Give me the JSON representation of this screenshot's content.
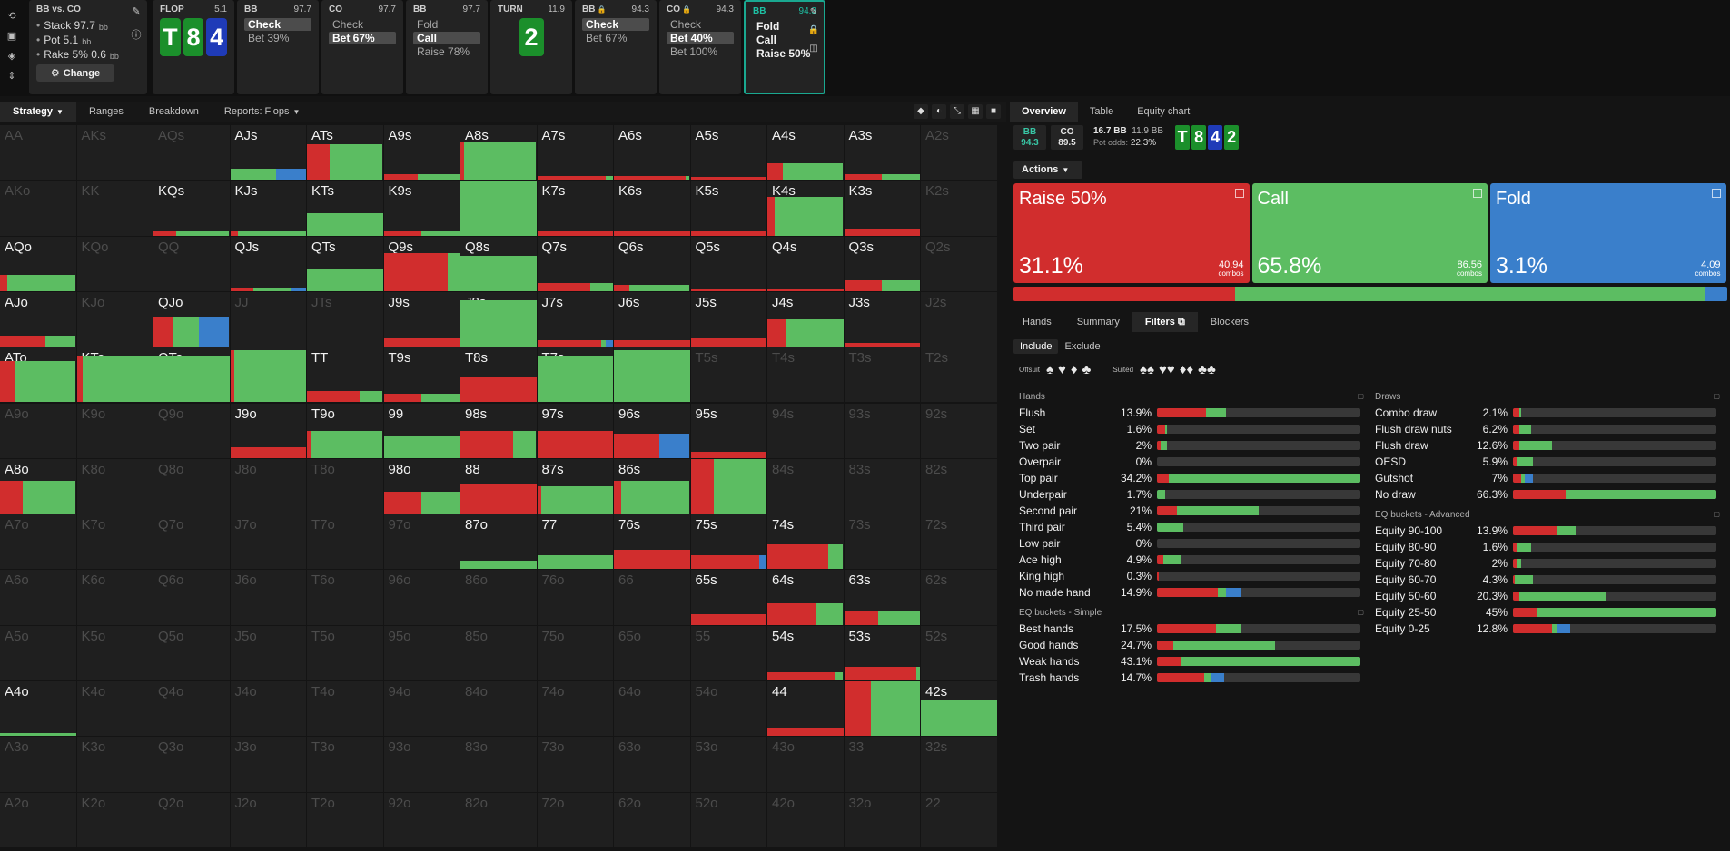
{
  "colors": {
    "raise": "#d12d2d",
    "call": "#5cbd62",
    "fold": "#3a7fcb",
    "spade_card": "#1b8f2b",
    "heart_card": "#1f3bb8"
  },
  "topbar": {
    "left_icons": [
      "refresh-icon",
      "save-icon",
      "gamepad-icon",
      "expand-icon"
    ],
    "summary": {
      "title": "BB vs. CO",
      "stack_label": "Stack 97.7",
      "stack_unit": "bb",
      "pot_label": "Pot 5.1",
      "pot_unit": "bb",
      "rake_label": "Rake 5% 0.6",
      "rake_unit": "bb",
      "change_label": "Change"
    },
    "action_cards": [
      {
        "kind": "board",
        "title": "FLOP",
        "pot": "5.1",
        "cards": [
          "T",
          "8",
          "4"
        ]
      },
      {
        "kind": "actions",
        "title": "BB",
        "pot": "97.7",
        "items": [
          "Check",
          "Bet 39%"
        ],
        "selected": 0
      },
      {
        "kind": "actions",
        "title": "CO",
        "pot": "97.7",
        "items": [
          "Check",
          "Bet 67%"
        ],
        "selected": 1
      },
      {
        "kind": "actions",
        "title": "BB",
        "pot": "97.7",
        "items": [
          "Fold",
          "Call",
          "Raise 78%"
        ],
        "selected": 1
      },
      {
        "kind": "board",
        "title": "TURN",
        "pot": "11.9",
        "cards": [
          "2"
        ]
      },
      {
        "kind": "actions",
        "title": "BB",
        "pot": "94.3",
        "locked": true,
        "items": [
          "Check",
          "Bet 67%"
        ],
        "selected": 0
      },
      {
        "kind": "actions",
        "title": "CO",
        "pot": "94.3",
        "locked": true,
        "items": [
          "Check",
          "Bet 40%",
          "Bet 100%"
        ],
        "selected": 1
      },
      {
        "kind": "actions",
        "title": "BB",
        "pot": "94.3",
        "items": [
          "Fold",
          "Call",
          "Raise 50%"
        ],
        "selected": -1,
        "active": true
      }
    ]
  },
  "grid_tabs": {
    "items": [
      "Strategy",
      "Ranges",
      "Breakdown",
      "Reports: Flops"
    ],
    "selected": 0
  },
  "grid": {
    "rows": [
      [
        "AA",
        "AKs",
        "AQs",
        "AJs",
        "ATs",
        "A9s",
        "A8s",
        "A7s",
        "A6s",
        "A5s",
        "A4s",
        "A3s",
        "A2s"
      ],
      [
        "AKo",
        "KK",
        "KQs",
        "KJs",
        "KTs",
        "K9s",
        "K8s",
        "K7s",
        "K6s",
        "K5s",
        "K4s",
        "K3s",
        "K2s"
      ],
      [
        "AQo",
        "KQo",
        "QQ",
        "QJs",
        "QTs",
        "Q9s",
        "Q8s",
        "Q7s",
        "Q6s",
        "Q5s",
        "Q4s",
        "Q3s",
        "Q2s"
      ],
      [
        "AJo",
        "KJo",
        "QJo",
        "JJ",
        "JTs",
        "J9s",
        "J8s",
        "J7s",
        "J6s",
        "J5s",
        "J4s",
        "J3s",
        "J2s"
      ],
      [
        "ATo",
        "KTo",
        "QTo",
        "JTo",
        "TT",
        "T9s",
        "T8s",
        "T7s",
        "T6s",
        "T5s",
        "T4s",
        "T3s",
        "T2s"
      ],
      [
        "A9o",
        "K9o",
        "Q9o",
        "J9o",
        "T9o",
        "99",
        "98s",
        "97s",
        "96s",
        "95s",
        "94s",
        "93s",
        "92s"
      ],
      [
        "A8o",
        "K8o",
        "Q8o",
        "J8o",
        "T8o",
        "98o",
        "88",
        "87s",
        "86s",
        "85s",
        "84s",
        "83s",
        "82s"
      ],
      [
        "A7o",
        "K7o",
        "Q7o",
        "J7o",
        "T7o",
        "97o",
        "87o",
        "77",
        "76s",
        "75s",
        "74s",
        "73s",
        "72s"
      ],
      [
        "A6o",
        "K6o",
        "Q6o",
        "J6o",
        "T6o",
        "96o",
        "86o",
        "76o",
        "66",
        "65s",
        "64s",
        "63s",
        "62s"
      ],
      [
        "A5o",
        "K5o",
        "Q5o",
        "J5o",
        "T5o",
        "95o",
        "85o",
        "75o",
        "65o",
        "55",
        "54s",
        "53s",
        "52s"
      ],
      [
        "A4o",
        "K4o",
        "Q4o",
        "J4o",
        "T4o",
        "94o",
        "84o",
        "74o",
        "64o",
        "54o",
        "44",
        "43s",
        "42s"
      ],
      [
        "A3o",
        "K3o",
        "Q3o",
        "J3o",
        "T3o",
        "93o",
        "83o",
        "73o",
        "63o",
        "53o",
        "43o",
        "33",
        "32s"
      ],
      [
        "A2o",
        "K2o",
        "Q2o",
        "J2o",
        "T2o",
        "92o",
        "82o",
        "72o",
        "62o",
        "52o",
        "42o",
        "32o",
        "22"
      ]
    ],
    "cells": {
      "AJs": {
        "h": 0.2,
        "r": 0,
        "c": 0.6,
        "f": 0.4
      },
      "ATs": {
        "h": 0.65,
        "r": 0.3,
        "c": 0.7,
        "f": 0
      },
      "A9s": {
        "h": 0.1,
        "r": 0.45,
        "c": 0.55,
        "f": 0
      },
      "A8s": {
        "h": 0.7,
        "r": 0.05,
        "c": 0.95,
        "f": 0
      },
      "A7s": {
        "h": 0.07,
        "r": 0.9,
        "c": 0.1,
        "f": 0
      },
      "A6s": {
        "h": 0.07,
        "r": 0.95,
        "c": 0.05,
        "f": 0
      },
      "A5s": {
        "h": 0.05,
        "r": 1,
        "c": 0,
        "f": 0
      },
      "A4s": {
        "h": 0.3,
        "r": 0.2,
        "c": 0.8,
        "f": 0
      },
      "A3s": {
        "h": 0.1,
        "r": 0.5,
        "c": 0.5,
        "f": 0
      },
      "KQs": {
        "h": 0.07,
        "r": 0.3,
        "c": 0.7,
        "f": 0
      },
      "KJs": {
        "h": 0.07,
        "r": 0.1,
        "c": 0.9,
        "f": 0
      },
      "KTs": {
        "h": 0.4,
        "r": 0,
        "c": 1,
        "f": 0
      },
      "K9s": {
        "h": 0.07,
        "r": 0.5,
        "c": 0.5,
        "f": 0
      },
      "K8s": {
        "h": 1,
        "r": 0,
        "c": 1,
        "f": 0
      },
      "K7s": {
        "h": 0.07,
        "r": 1,
        "c": 0,
        "f": 0
      },
      "K6s": {
        "h": 0.07,
        "r": 1,
        "c": 0,
        "f": 0
      },
      "K5s": {
        "h": 0.07,
        "r": 1,
        "c": 0,
        "f": 0
      },
      "K4s": {
        "h": 0.7,
        "r": 0.1,
        "c": 0.9,
        "f": 0
      },
      "K3s": {
        "h": 0.12,
        "r": 1,
        "c": 0,
        "f": 0
      },
      "AQo": {
        "h": 0.3,
        "r": 0.1,
        "c": 0.9,
        "f": 0
      },
      "QJs": {
        "h": 0.07,
        "r": 0.3,
        "c": 0.5,
        "f": 0.2
      },
      "QTs": {
        "h": 0.4,
        "r": 0,
        "c": 1,
        "f": 0
      },
      "Q9s": {
        "h": 0.7,
        "r": 0.85,
        "c": 0.15,
        "f": 0
      },
      "Q8s": {
        "h": 0.65,
        "r": 0,
        "c": 1,
        "f": 0
      },
      "Q7s": {
        "h": 0.15,
        "r": 0.7,
        "c": 0.3,
        "f": 0
      },
      "Q6s": {
        "h": 0.12,
        "r": 0.2,
        "c": 0.8,
        "f": 0
      },
      "Q5s": {
        "h": 0.05,
        "r": 1,
        "c": 0,
        "f": 0
      },
      "Q4s": {
        "h": 0.05,
        "r": 1,
        "c": 0,
        "f": 0
      },
      "Q3s": {
        "h": 0.2,
        "r": 0.5,
        "c": 0.5,
        "f": 0
      },
      "AJo": {
        "h": 0.2,
        "r": 0.6,
        "c": 0.4,
        "f": 0
      },
      "QJo": {
        "h": 0.55,
        "r": 0.25,
        "c": 0.35,
        "f": 0.4
      },
      "J9s": {
        "h": 0.15,
        "r": 1,
        "c": 0,
        "f": 0
      },
      "J8s": {
        "h": 0.85,
        "r": 0,
        "c": 1,
        "f": 0
      },
      "J7s": {
        "h": 0.12,
        "r": 0.85,
        "c": 0.05,
        "f": 0.1
      },
      "J6s": {
        "h": 0.12,
        "r": 1,
        "c": 0,
        "f": 0
      },
      "J5s": {
        "h": 0.15,
        "r": 1,
        "c": 0,
        "f": 0
      },
      "J4s": {
        "h": 0.5,
        "r": 0.25,
        "c": 0.75,
        "f": 0
      },
      "J3s": {
        "h": 0.07,
        "r": 1,
        "c": 0,
        "f": 0
      },
      "ATo": {
        "h": 0.75,
        "r": 0.2,
        "c": 0.8,
        "f": 0
      },
      "KTo": {
        "h": 0.85,
        "r": 0.08,
        "c": 0.92,
        "f": 0
      },
      "QTo": {
        "h": 0.85,
        "r": 0,
        "c": 1,
        "f": 0
      },
      "JTo": {
        "h": 0.95,
        "r": 0.05,
        "c": 0.95,
        "f": 0
      },
      "TT": {
        "h": 0.2,
        "r": 0.7,
        "c": 0.3,
        "f": 0
      },
      "T9s": {
        "h": 0.15,
        "r": 0.5,
        "c": 0.5,
        "f": 0
      },
      "T8s": {
        "h": 0.45,
        "r": 1,
        "c": 0,
        "f": 0
      },
      "T7s": {
        "h": 0.85,
        "r": 0,
        "c": 1,
        "f": 0
      },
      "T6s": {
        "h": 0.95,
        "r": 0,
        "c": 1,
        "f": 0
      },
      "J9o": {
        "h": 0.2,
        "r": 1,
        "c": 0,
        "f": 0
      },
      "T9o": {
        "h": 0.5,
        "r": 0.05,
        "c": 0.95,
        "f": 0
      },
      "99": {
        "h": 0.4,
        "r": 0,
        "c": 1,
        "f": 0
      },
      "98s": {
        "h": 0.5,
        "r": 0.7,
        "c": 0.3,
        "f": 0
      },
      "97s": {
        "h": 0.5,
        "r": 1,
        "c": 0,
        "f": 0
      },
      "96s": {
        "h": 0.45,
        "r": 0.6,
        "c": 0,
        "f": 0.4
      },
      "95s": {
        "h": 0.12,
        "r": 1,
        "c": 0,
        "f": 0
      },
      "A8o": {
        "h": 0.6,
        "r": 0.3,
        "c": 0.7,
        "f": 0
      },
      "98o": {
        "h": 0.4,
        "r": 0.5,
        "c": 0.5,
        "f": 0
      },
      "88": {
        "h": 0.55,
        "r": 1,
        "c": 0,
        "f": 0
      },
      "87s": {
        "h": 0.5,
        "r": 0.05,
        "c": 0.95,
        "f": 0
      },
      "86s": {
        "h": 0.6,
        "r": 0.1,
        "c": 0.9,
        "f": 0
      },
      "85s": {
        "h": 1,
        "r": 0.3,
        "c": 0.7,
        "f": 0
      },
      "87o": {
        "h": 0.15,
        "r": 0,
        "c": 1,
        "f": 0
      },
      "77": {
        "h": 0.25,
        "r": 0,
        "c": 1,
        "f": 0
      },
      "76s": {
        "h": 0.35,
        "r": 1,
        "c": 0,
        "f": 0
      },
      "75s": {
        "h": 0.25,
        "r": 0.9,
        "c": 0,
        "f": 0.1
      },
      "74s": {
        "h": 0.45,
        "r": 0.8,
        "c": 0.2,
        "f": 0
      },
      "65s": {
        "h": 0.2,
        "r": 1,
        "c": 0,
        "f": 0
      },
      "64s": {
        "h": 0.4,
        "r": 0.65,
        "c": 0.35,
        "f": 0
      },
      "63s": {
        "h": 0.25,
        "r": 0.45,
        "c": 0.55,
        "f": 0
      },
      "54s": {
        "h": 0.15,
        "r": 0.9,
        "c": 0.1,
        "f": 0
      },
      "53s": {
        "h": 0.25,
        "r": 0.95,
        "c": 0.05,
        "f": 0
      },
      "A4o": {
        "h": 0.05,
        "r": 0,
        "c": 1,
        "f": 0
      },
      "44": {
        "h": 0.15,
        "r": 1,
        "c": 0,
        "f": 0
      },
      "43s": {
        "h": 1,
        "r": 0.35,
        "c": 0.65,
        "f": 0
      },
      "42s": {
        "h": 0.65,
        "r": 0,
        "c": 1,
        "f": 0
      }
    }
  },
  "right_tabs": {
    "items": [
      "Overview",
      "Table",
      "Equity chart"
    ],
    "selected": 0
  },
  "infobar": {
    "players": [
      {
        "name": "BB",
        "stack": "94.3"
      },
      {
        "name": "CO",
        "stack": "89.5"
      }
    ],
    "stack_bb": "16.7 BB",
    "pot_bb": "11.9 BB",
    "pot_odds_label": "Pot odds:",
    "pot_odds": "22.3%",
    "board": [
      "T",
      "8",
      "4",
      "2"
    ]
  },
  "actions_button": "Actions",
  "actions": [
    {
      "name": "Raise 50%",
      "pct": "31.1%",
      "combos": "40.94",
      "combos_label": "combos",
      "freq": 0.311,
      "color": "#d12d2d"
    },
    {
      "name": "Call",
      "pct": "65.8%",
      "combos": "86.56",
      "combos_label": "combos",
      "freq": 0.658,
      "color": "#5cbd62"
    },
    {
      "name": "Fold",
      "pct": "3.1%",
      "combos": "4.09",
      "combos_label": "combos",
      "freq": 0.031,
      "color": "#3a7fcb"
    }
  ],
  "sub_tabs": {
    "items": [
      "Hands",
      "Summary",
      "Filters",
      "Blockers"
    ],
    "selected": 2
  },
  "include_exclude": {
    "items": [
      "Include",
      "Exclude"
    ],
    "selected": 0
  },
  "suits": {
    "offsuit_label": "Offsuit",
    "suited_label": "Suited",
    "offsuit": [
      "♠",
      "♥",
      "♦",
      "♣"
    ],
    "suited": [
      "♠♠",
      "♥♥",
      "♦♦",
      "♣♣"
    ]
  },
  "stats": {
    "left": [
      {
        "title": "Hands",
        "rows": [
          {
            "name": "Flush",
            "pct": "13.9%",
            "r": 0.24,
            "c": 0.1,
            "f": 0
          },
          {
            "name": "Set",
            "pct": "1.6%",
            "r": 0.04,
            "c": 0.01,
            "f": 0
          },
          {
            "name": "Two pair",
            "pct": "2%",
            "r": 0.02,
            "c": 0.03,
            "f": 0
          },
          {
            "name": "Overpair",
            "pct": "0%",
            "r": 0,
            "c": 0,
            "f": 0
          },
          {
            "name": "Top pair",
            "pct": "34.2%",
            "r": 0.06,
            "c": 0.94,
            "f": 0
          },
          {
            "name": "Underpair",
            "pct": "1.7%",
            "r": 0,
            "c": 0.04,
            "f": 0
          },
          {
            "name": "Second pair",
            "pct": "21%",
            "r": 0.1,
            "c": 0.4,
            "f": 0
          },
          {
            "name": "Third pair",
            "pct": "5.4%",
            "r": 0,
            "c": 0.13,
            "f": 0
          },
          {
            "name": "Low pair",
            "pct": "0%",
            "r": 0,
            "c": 0,
            "f": 0
          },
          {
            "name": "Ace high",
            "pct": "4.9%",
            "r": 0.03,
            "c": 0.09,
            "f": 0
          },
          {
            "name": "King high",
            "pct": "0.3%",
            "r": 0.01,
            "c": 0,
            "f": 0
          },
          {
            "name": "No made hand",
            "pct": "14.9%",
            "r": 0.3,
            "c": 0.04,
            "f": 0.07
          }
        ]
      },
      {
        "title": "EQ buckets - Simple",
        "rows": [
          {
            "name": "Best hands",
            "pct": "17.5%",
            "r": 0.29,
            "c": 0.12,
            "f": 0
          },
          {
            "name": "Good hands",
            "pct": "24.7%",
            "r": 0.08,
            "c": 0.5,
            "f": 0
          },
          {
            "name": "Weak hands",
            "pct": "43.1%",
            "r": 0.12,
            "c": 0.88,
            "f": 0
          },
          {
            "name": "Trash hands",
            "pct": "14.7%",
            "r": 0.23,
            "c": 0.04,
            "f": 0.06
          }
        ]
      }
    ],
    "right": [
      {
        "title": "Draws",
        "rows": [
          {
            "name": "Combo draw",
            "pct": "2.1%",
            "r": 0.03,
            "c": 0.01,
            "f": 0
          },
          {
            "name": "Flush draw nuts",
            "pct": "6.2%",
            "r": 0.03,
            "c": 0.06,
            "f": 0
          },
          {
            "name": "Flush draw",
            "pct": "12.6%",
            "r": 0.03,
            "c": 0.16,
            "f": 0
          },
          {
            "name": "OESD",
            "pct": "5.9%",
            "r": 0.02,
            "c": 0.08,
            "f": 0
          },
          {
            "name": "Gutshot",
            "pct": "7%",
            "r": 0.04,
            "c": 0.02,
            "f": 0.04
          },
          {
            "name": "No draw",
            "pct": "66.3%",
            "r": 0.26,
            "c": 0.74,
            "f": 0
          }
        ]
      },
      {
        "title": "EQ buckets - Advanced",
        "rows": [
          {
            "name": "Equity 90-100",
            "pct": "13.9%",
            "r": 0.22,
            "c": 0.09,
            "f": 0
          },
          {
            "name": "Equity 80-90",
            "pct": "1.6%",
            "r": 0.02,
            "c": 0.07,
            "f": 0
          },
          {
            "name": "Equity 70-80",
            "pct": "2%",
            "r": 0.02,
            "c": 0.02,
            "f": 0
          },
          {
            "name": "Equity 60-70",
            "pct": "4.3%",
            "r": 0.01,
            "c": 0.09,
            "f": 0
          },
          {
            "name": "Equity 50-60",
            "pct": "20.3%",
            "r": 0.03,
            "c": 0.43,
            "f": 0
          },
          {
            "name": "Equity 25-50",
            "pct": "45%",
            "r": 0.12,
            "c": 0.88,
            "f": 0
          },
          {
            "name": "Equity 0-25",
            "pct": "12.8%",
            "r": 0.19,
            "c": 0.03,
            "f": 0.06
          }
        ]
      }
    ]
  }
}
